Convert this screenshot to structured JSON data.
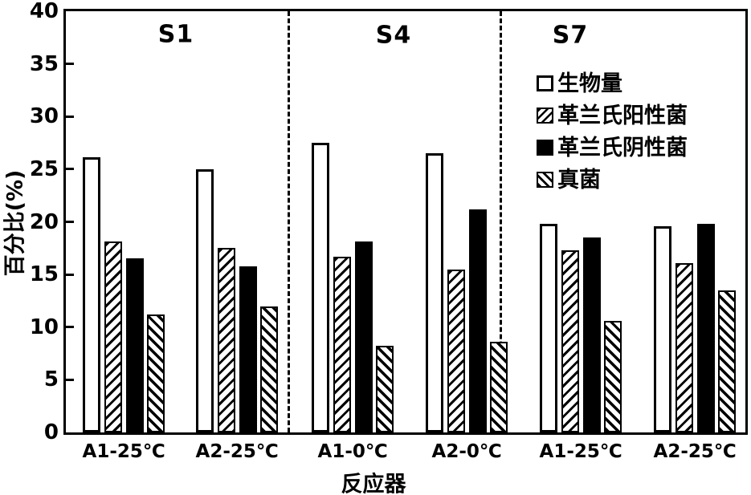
{
  "chart_data": {
    "type": "bar",
    "title": "",
    "ylabel": "百分比(%)",
    "xlabel": "反应器",
    "ylim": [
      0,
      40
    ],
    "yticks": [
      0,
      5,
      10,
      15,
      20,
      25,
      30,
      35,
      40
    ],
    "grid": false,
    "legend_position": "inside-top-right",
    "colors": {
      "foreground": "#000000",
      "background": "#ffffff"
    },
    "sections": [
      {
        "label": "S1"
      },
      {
        "label": "S4"
      },
      {
        "label": "S7"
      }
    ],
    "series": [
      {
        "name": "生物量",
        "pattern": "open"
      },
      {
        "name": "革兰氏阳性菌",
        "pattern": "hatch-forward"
      },
      {
        "name": "革兰氏阴性菌",
        "pattern": "solid"
      },
      {
        "name": "真菌",
        "pattern": "hatch-back"
      }
    ],
    "groups": [
      {
        "section": "S1",
        "label": "A1-25℃",
        "values": [
          26.1,
          18.1,
          16.5,
          11.2
        ]
      },
      {
        "section": "S1",
        "label": "A2-25℃",
        "values": [
          25.0,
          17.5,
          15.8,
          12.0
        ]
      },
      {
        "section": "S4",
        "label": "A1-0℃",
        "values": [
          27.5,
          16.7,
          18.1,
          8.2
        ]
      },
      {
        "section": "S4",
        "label": "A2-0℃",
        "values": [
          26.5,
          15.5,
          21.2,
          8.6
        ]
      },
      {
        "section": "S7",
        "label": "A1-25℃",
        "values": [
          19.8,
          17.3,
          18.5,
          10.6
        ]
      },
      {
        "section": "S7",
        "label": "A2-25℃",
        "values": [
          19.6,
          16.1,
          19.8,
          13.5
        ]
      }
    ]
  }
}
